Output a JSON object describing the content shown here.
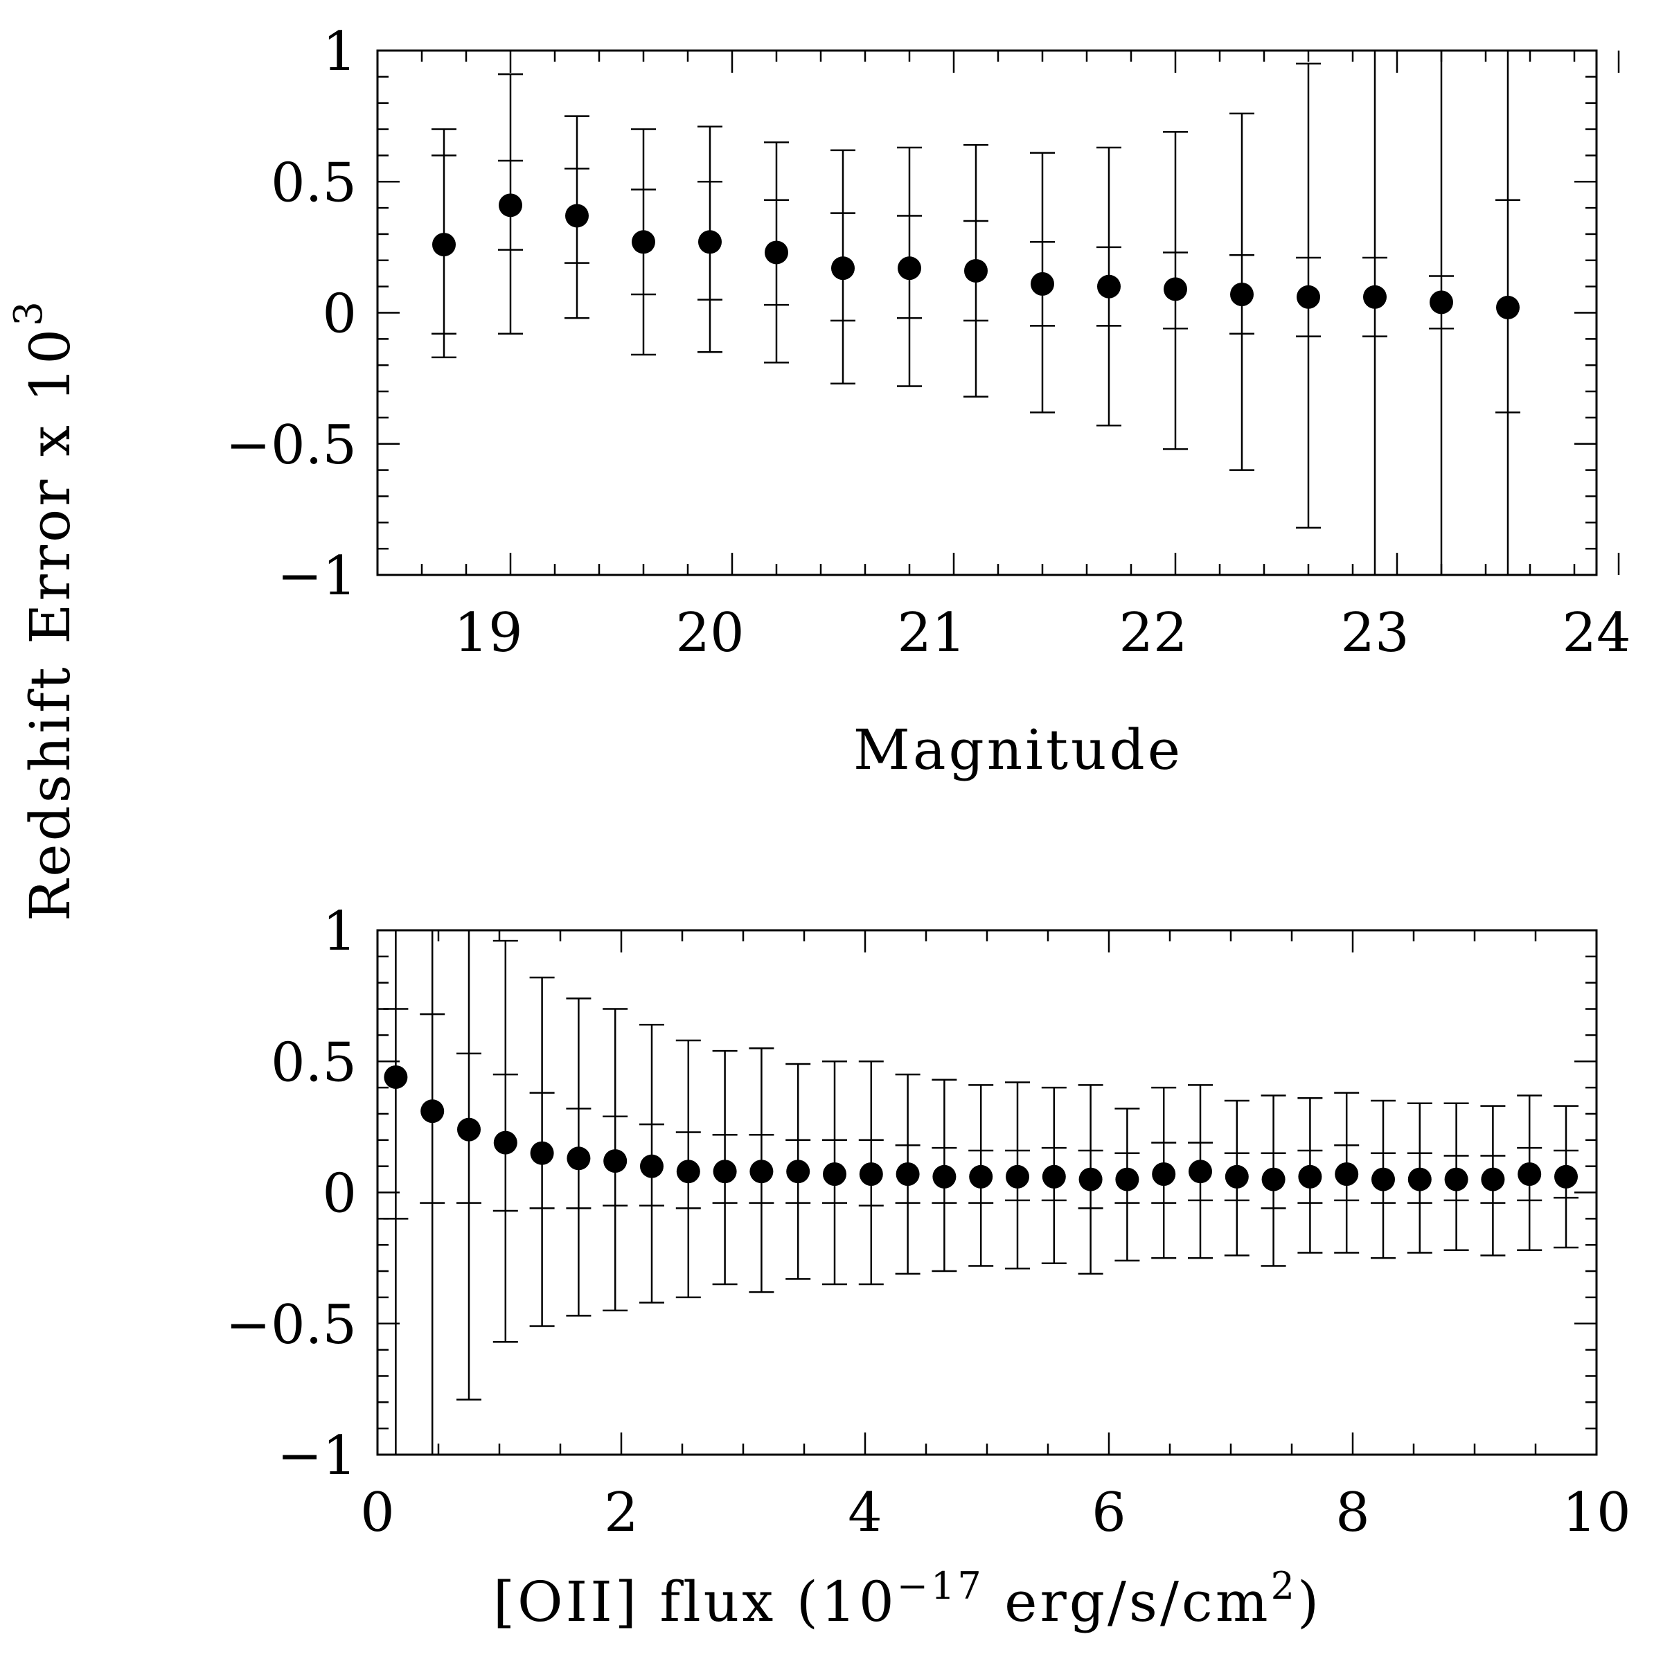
{
  "shared_ylabel": "Redshift Error x 10",
  "shared_ylabel_exp": "3",
  "chart_data": [
    {
      "type": "scatter",
      "name": "magnitude-panel",
      "xlabel": "Magnitude",
      "ylabel": "Redshift Error x 10^3",
      "xlim": [
        18.5,
        24
      ],
      "ylim": [
        -1,
        1
      ],
      "xticks": [
        19,
        20,
        21,
        22,
        23,
        24
      ],
      "xtick_labels": [
        "19",
        "20",
        "21",
        "22",
        "23",
        "24"
      ],
      "yticks": [
        -1,
        -0.5,
        0,
        0.5,
        1
      ],
      "ytick_labels": [
        "−1",
        "−0.5",
        "0",
        "0.5",
        "1"
      ],
      "x": [
        18.8,
        19.1,
        19.4,
        19.7,
        20.0,
        20.3,
        20.6,
        20.9,
        21.2,
        21.5,
        21.8,
        22.1,
        22.4,
        22.7,
        23.0,
        23.3,
        23.6
      ],
      "y": [
        0.26,
        0.41,
        0.37,
        0.27,
        0.27,
        0.23,
        0.17,
        0.17,
        0.16,
        0.11,
        0.1,
        0.09,
        0.07,
        0.06,
        0.06,
        0.04,
        0.02
      ],
      "outer_low": [
        -0.17,
        -0.08,
        -0.02,
        -0.16,
        -0.15,
        -0.19,
        -0.27,
        -0.28,
        -0.32,
        -0.38,
        -0.43,
        -0.52,
        -0.6,
        -0.82,
        -1.0,
        -1.0,
        -1.0
      ],
      "outer_high": [
        0.7,
        0.91,
        0.75,
        0.7,
        0.71,
        0.65,
        0.62,
        0.63,
        0.64,
        0.61,
        0.63,
        0.69,
        0.76,
        0.95,
        1.0,
        1.0,
        1.0
      ],
      "inner_low": [
        -0.08,
        0.24,
        0.19,
        0.07,
        0.05,
        0.03,
        -0.03,
        -0.02,
        -0.03,
        -0.05,
        -0.05,
        -0.06,
        -0.08,
        -0.09,
        -0.09,
        -0.06,
        -0.38
      ],
      "inner_high": [
        0.6,
        0.58,
        0.55,
        0.47,
        0.5,
        0.43,
        0.38,
        0.37,
        0.35,
        0.27,
        0.25,
        0.23,
        0.22,
        0.21,
        0.21,
        0.14,
        0.43
      ]
    },
    {
      "type": "scatter",
      "name": "oii-flux-panel",
      "xlabel": "[OII] flux (10",
      "xlabel_exp": "−17",
      "xlabel_rest": " erg/s/cm",
      "xlabel_exp2": "2",
      "xlabel_end": ")",
      "ylabel": "Redshift Error x 10^3",
      "xlim": [
        0,
        10
      ],
      "ylim": [
        -1,
        1
      ],
      "xticks": [
        0,
        2,
        4,
        6,
        8,
        10
      ],
      "xtick_labels": [
        "0",
        "2",
        "4",
        "6",
        "8",
        "10"
      ],
      "yticks": [
        -1,
        -0.5,
        0,
        0.5,
        1
      ],
      "ytick_labels": [
        "−1",
        "−0.5",
        "0",
        "0.5",
        "1"
      ],
      "x": [
        0.15,
        0.45,
        0.75,
        1.05,
        1.35,
        1.65,
        1.95,
        2.25,
        2.55,
        2.85,
        3.15,
        3.45,
        3.75,
        4.05,
        4.35,
        4.65,
        4.95,
        5.25,
        5.55,
        5.85,
        6.15,
        6.45,
        6.75,
        7.05,
        7.35,
        7.65,
        7.95,
        8.25,
        8.55,
        8.85,
        9.15,
        9.45,
        9.75
      ],
      "y": [
        0.44,
        0.31,
        0.24,
        0.19,
        0.15,
        0.13,
        0.12,
        0.1,
        0.08,
        0.08,
        0.08,
        0.08,
        0.07,
        0.07,
        0.07,
        0.06,
        0.06,
        0.06,
        0.06,
        0.05,
        0.05,
        0.07,
        0.08,
        0.06,
        0.05,
        0.06,
        0.07,
        0.05,
        0.05,
        0.05,
        0.05,
        0.07,
        0.06
      ],
      "outer_low": [
        -1.0,
        -1.0,
        -0.79,
        -0.57,
        -0.51,
        -0.47,
        -0.45,
        -0.42,
        -0.4,
        -0.35,
        -0.38,
        -0.33,
        -0.35,
        -0.35,
        -0.31,
        -0.3,
        -0.28,
        -0.29,
        -0.27,
        -0.31,
        -0.26,
        -0.25,
        -0.25,
        -0.24,
        -0.28,
        -0.23,
        -0.23,
        -0.25,
        -0.23,
        -0.22,
        -0.24,
        -0.22,
        -0.21
      ],
      "outer_high": [
        1.0,
        1.0,
        1.0,
        0.96,
        0.82,
        0.74,
        0.7,
        0.64,
        0.58,
        0.54,
        0.55,
        0.49,
        0.5,
        0.5,
        0.45,
        0.43,
        0.41,
        0.42,
        0.4,
        0.41,
        0.32,
        0.4,
        0.41,
        0.35,
        0.37,
        0.36,
        0.38,
        0.35,
        0.34,
        0.34,
        0.33,
        0.37,
        0.33
      ],
      "inner_low": [
        -0.1,
        -0.04,
        -0.04,
        -0.07,
        -0.06,
        -0.06,
        -0.05,
        -0.05,
        -0.06,
        -0.04,
        -0.04,
        -0.04,
        -0.04,
        -0.05,
        -0.04,
        -0.04,
        -0.04,
        -0.03,
        -0.03,
        -0.06,
        -0.04,
        -0.04,
        -0.03,
        -0.03,
        -0.06,
        -0.04,
        -0.03,
        -0.04,
        -0.04,
        -0.03,
        -0.04,
        -0.03,
        -0.02
      ],
      "inner_high": [
        0.7,
        0.68,
        0.53,
        0.45,
        0.38,
        0.32,
        0.29,
        0.26,
        0.23,
        0.22,
        0.22,
        0.2,
        0.2,
        0.2,
        0.18,
        0.17,
        0.16,
        0.16,
        0.17,
        0.16,
        0.15,
        0.19,
        0.19,
        0.15,
        0.15,
        0.16,
        0.18,
        0.15,
        0.15,
        0.14,
        0.14,
        0.17,
        0.16
      ]
    }
  ]
}
